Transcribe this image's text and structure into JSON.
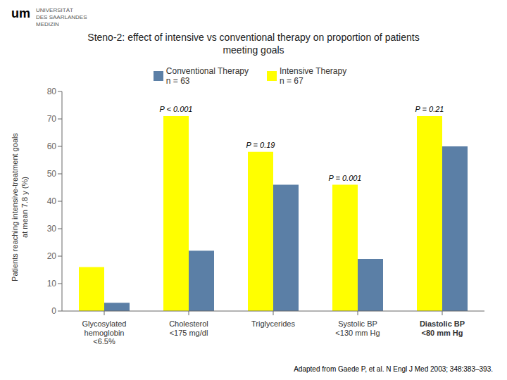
{
  "chart_data": {
    "type": "bar",
    "title": "Steno-2: effect of intensive vs conventional therapy on proportion of patients\nmeeting goals",
    "ylabel": "Patients reaching intensive-treatment goals\nat mean 7.8 y (%)",
    "categories": [
      "Glycosylated\nhemoglobin\n<6.5%",
      "Cholesterol\n<175 mg/dl",
      "Triglycerides",
      "Systolic BP\n<130 mm Hg",
      "Diastolic BP\n<80 mm Hg"
    ],
    "series": [
      {
        "name": "Intensive Therapy\nn = 67",
        "color": "#FFFF00",
        "values": [
          16,
          71,
          58,
          46,
          71
        ],
        "annotations": [
          null,
          "P < 0.001",
          "P = 0.19",
          "P = 0.001",
          "P = 0.21"
        ]
      },
      {
        "name": "Conventional Therapy\nn = 63",
        "color": "#5B7FA6",
        "values": [
          3,
          22,
          46,
          19,
          60
        ]
      }
    ],
    "ylim": [
      0,
      80
    ],
    "yticks": [
      0,
      10,
      20,
      30,
      40,
      50,
      60,
      70,
      80
    ],
    "grid": false,
    "legend": "top",
    "annotations": [
      "Adapted from Gaede P, et al.  N Engl J Med  2003; 348:383–393.",
      "um",
      "UNIVERSITÄT\nDES SAARLANDES\nMEDIZIN"
    ]
  }
}
